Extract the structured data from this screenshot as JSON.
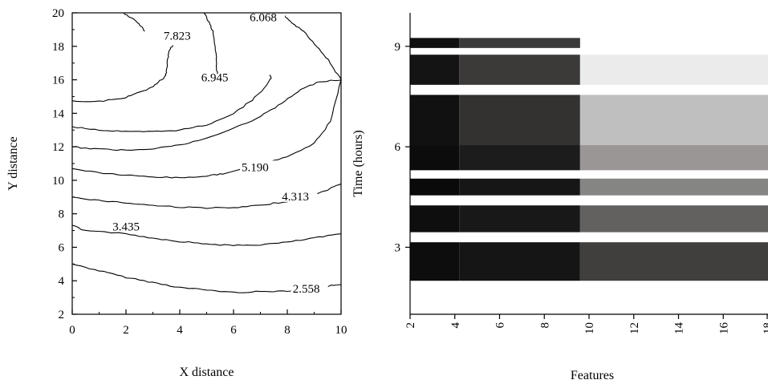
{
  "chart_data": [
    {
      "type": "contour",
      "xlabel": "X distance",
      "ylabel": "Y distance",
      "xlim": [
        0,
        10
      ],
      "ylim": [
        2,
        20
      ],
      "xticks": [
        "0",
        "2",
        "4",
        "6",
        "8",
        "10"
      ],
      "yticks": [
        "2",
        "4",
        "6",
        "8",
        "10",
        "12",
        "14",
        "16",
        "18",
        "20"
      ],
      "grid": false,
      "contours": [
        {
          "label": "2.558",
          "label_at": [
            8.2,
            3.4
          ],
          "points": [
            [
              0,
              5.0
            ],
            [
              1,
              4.6
            ],
            [
              2,
              4.2
            ],
            [
              3,
              3.9
            ],
            [
              4,
              3.6
            ],
            [
              5,
              3.45
            ],
            [
              6,
              3.3
            ],
            [
              7,
              3.35
            ],
            [
              8,
              3.4
            ],
            [
              9,
              3.5
            ],
            [
              9.6,
              3.7
            ],
            [
              10,
              3.75
            ]
          ]
        },
        {
          "label": "3.435",
          "label_at": [
            1.5,
            7.1
          ],
          "points": [
            [
              0,
              7.3
            ],
            [
              0.4,
              7.05
            ],
            [
              2,
              6.8
            ],
            [
              3,
              6.55
            ],
            [
              4,
              6.35
            ],
            [
              5,
              6.2
            ],
            [
              6,
              6.1
            ],
            [
              7,
              6.15
            ],
            [
              8,
              6.3
            ],
            [
              9,
              6.55
            ],
            [
              10,
              6.8
            ]
          ]
        },
        {
          "label": "4.313",
          "label_at": [
            7.8,
            8.9
          ],
          "points": [
            [
              0,
              9.0
            ],
            [
              1,
              8.8
            ],
            [
              2,
              8.65
            ],
            [
              3,
              8.5
            ],
            [
              4,
              8.4
            ],
            [
              5,
              8.35
            ],
            [
              6,
              8.35
            ],
            [
              7,
              8.5
            ],
            [
              8,
              8.75
            ],
            [
              9,
              9.1
            ],
            [
              9.6,
              9.5
            ],
            [
              10,
              9.8
            ]
          ]
        },
        {
          "label": "5.190",
          "label_at": [
            6.3,
            10.65
          ],
          "points": [
            [
              0,
              10.7
            ],
            [
              1,
              10.45
            ],
            [
              2,
              10.3
            ],
            [
              3,
              10.2
            ],
            [
              4,
              10.15
            ],
            [
              5,
              10.25
            ],
            [
              5.6,
              10.4
            ],
            [
              7,
              10.9
            ],
            [
              8,
              11.4
            ],
            [
              9,
              12.2
            ],
            [
              9.6,
              13.5
            ],
            [
              10,
              16.0
            ]
          ]
        },
        {
          "label": "6.945",
          "label_at": [
            4.8,
            16.0
          ],
          "points": [
            [
              0,
              13.2
            ],
            [
              1,
              13.0
            ],
            [
              2,
              12.9
            ],
            [
              3,
              12.9
            ],
            [
              4,
              13.0
            ],
            [
              5,
              13.3
            ],
            [
              6,
              14.0
            ],
            [
              6.7,
              14.8
            ],
            [
              7.2,
              15.6
            ],
            [
              7.4,
              16.1
            ],
            [
              7.35,
              16.3
            ]
          ]
        },
        {
          "label": "6.068",
          "label_at": [
            6.6,
            19.6
          ],
          "points": [
            [
              0,
              12.0
            ],
            [
              1,
              11.85
            ],
            [
              2,
              11.8
            ],
            [
              3,
              11.9
            ],
            [
              4,
              12.1
            ],
            [
              5,
              12.5
            ],
            [
              6,
              13.1
            ],
            [
              7,
              13.8
            ],
            [
              7.8,
              14.6
            ],
            [
              8.5,
              15.4
            ],
            [
              9.2,
              15.9
            ],
            [
              10,
              16.0
            ],
            [
              9.6,
              17.0
            ],
            [
              9.1,
              18.0
            ],
            [
              8.6,
              18.9
            ],
            [
              8.1,
              19.5
            ],
            [
              7.8,
              20.0
            ]
          ]
        },
        {
          "label": "7.823",
          "label_at": [
            3.4,
            18.5
          ],
          "points": [
            [
              0,
              14.75
            ],
            [
              1,
              14.7
            ],
            [
              2,
              14.95
            ],
            [
              2.6,
              15.3
            ],
            [
              3,
              15.6
            ],
            [
              3.4,
              16.1
            ],
            [
              3.5,
              16.4
            ],
            [
              3.55,
              17.3
            ],
            [
              3.65,
              17.9
            ],
            [
              3.75,
              18.05
            ]
          ]
        },
        {
          "label": "",
          "label_at": null,
          "points": [
            [
              1.9,
              20.0
            ],
            [
              2.3,
              19.6
            ],
            [
              2.55,
              19.2
            ],
            [
              2.7,
              18.9
            ]
          ]
        },
        {
          "label": "",
          "label_at": null,
          "points": [
            [
              4.9,
              20.0
            ],
            [
              5.1,
              19.4
            ],
            [
              5.25,
              18.8
            ],
            [
              5.35,
              17.6
            ],
            [
              5.35,
              16.8
            ],
            [
              5.4,
              16.35
            ]
          ]
        }
      ]
    },
    {
      "type": "heatmap",
      "xlabel": "Features",
      "ylabel": "Time (hours)",
      "xlim": [
        2,
        18
      ],
      "ylim": [
        1,
        10
      ],
      "xticks": [
        "2",
        "4",
        "6",
        "8",
        "10",
        "12",
        "14",
        "16",
        "18"
      ],
      "yticks": [
        "3",
        "6",
        "9"
      ],
      "grid": false,
      "rows": [
        {
          "y0": 8.95,
          "y1": 9.25,
          "cells": [
            [
              2,
              4.2,
              "#101010"
            ],
            [
              4.2,
              9.6,
              "#3b3b3b"
            ]
          ]
        },
        {
          "y0": 7.85,
          "y1": 8.75,
          "cells": [
            [
              2,
              4.2,
              "#141414"
            ],
            [
              4.2,
              9.6,
              "#3c3a39"
            ],
            [
              9.6,
              18,
              "#ebebeb"
            ]
          ]
        },
        {
          "y0": 6.05,
          "y1": 7.55,
          "cells": [
            [
              2,
              4.2,
              "#111111"
            ],
            [
              4.2,
              9.6,
              "#333231"
            ],
            [
              9.6,
              18,
              "#bfbfbf"
            ]
          ]
        },
        {
          "y0": 5.3,
          "y1": 6.05,
          "cells": [
            [
              2,
              4.2,
              "#0c0c0c"
            ],
            [
              4.2,
              9.6,
              "#1c1c1c"
            ],
            [
              9.6,
              18,
              "#9a9695"
            ]
          ]
        },
        {
          "y0": 4.55,
          "y1": 5.05,
          "cells": [
            [
              2,
              4.2,
              "#0a0a0a"
            ],
            [
              4.2,
              9.6,
              "#161616"
            ],
            [
              9.6,
              18,
              "#858584"
            ]
          ]
        },
        {
          "y0": 3.45,
          "y1": 4.25,
          "cells": [
            [
              2,
              4.2,
              "#0e0e0e"
            ],
            [
              4.2,
              9.6,
              "#181818"
            ],
            [
              9.6,
              18,
              "#626160"
            ]
          ]
        },
        {
          "y0": 2.0,
          "y1": 3.15,
          "cells": [
            [
              2,
              4.2,
              "#0d0d0d"
            ],
            [
              4.2,
              9.6,
              "#151515"
            ],
            [
              9.6,
              18,
              "#403f3e"
            ]
          ]
        }
      ]
    }
  ]
}
